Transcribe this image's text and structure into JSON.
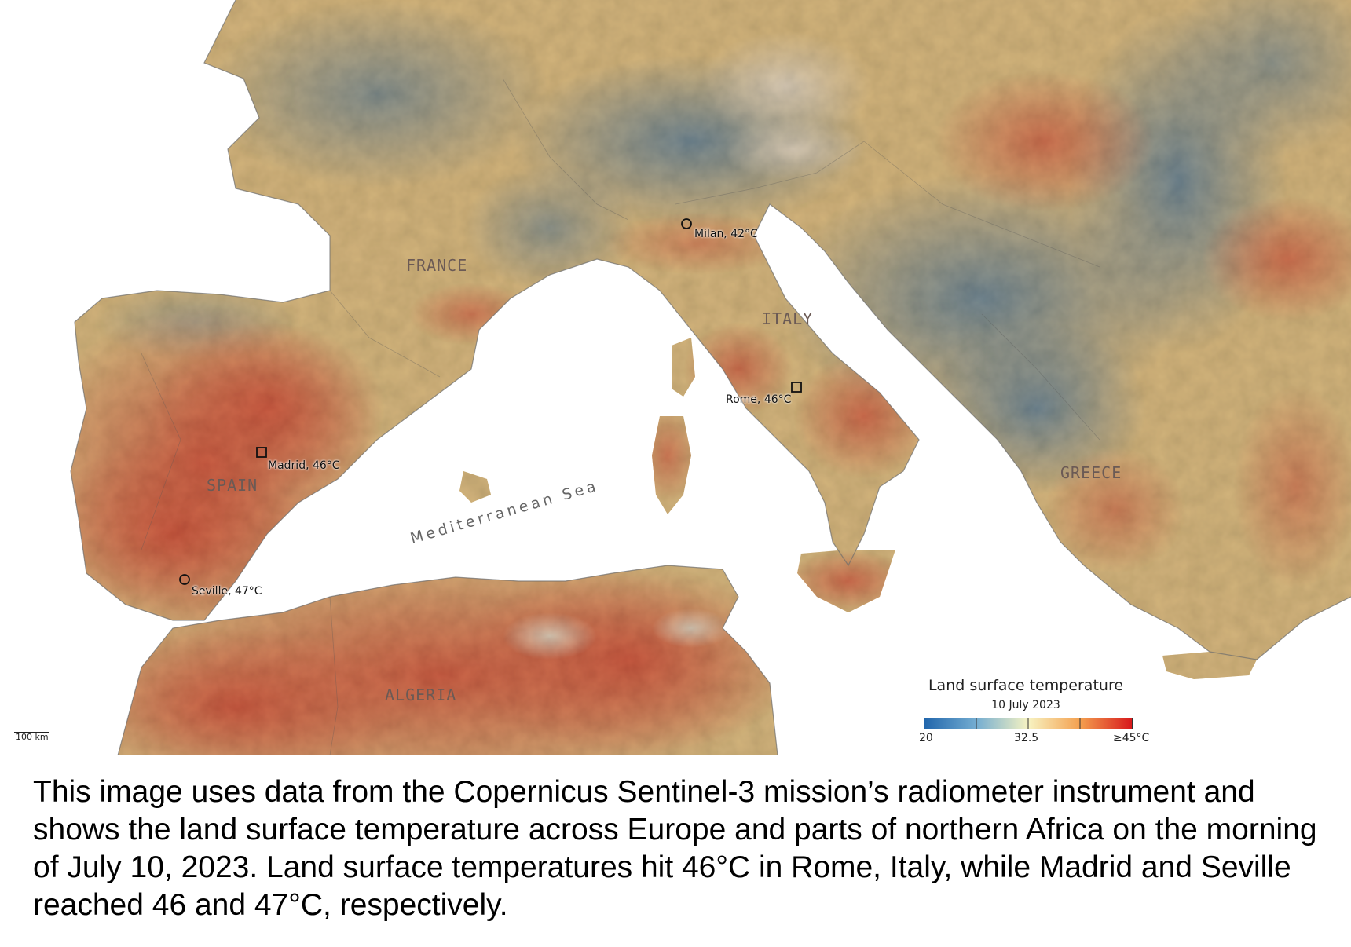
{
  "map": {
    "country_labels": {
      "france": "FRANCE",
      "italy": "ITALY",
      "spain": "SPAIN",
      "greece": "GREECE",
      "algeria": "ALGERIA"
    },
    "sea_label": "Mediterranean Sea",
    "cities": {
      "milan": "Milan, 42°C",
      "rome": "Rome, 46°C",
      "madrid": "Madrid, 46°C",
      "seville": "Seville, 47°C"
    },
    "scale_bar_label": "100 km",
    "colors": {
      "cool": "#2b6fb1",
      "mild": "#f1e7a8",
      "warm": "#f08c4a",
      "hot": "#d7221d"
    }
  },
  "legend": {
    "title": "Land surface temperature",
    "date": "10 July 2023",
    "tick_min": "20",
    "tick_mid": "32.5",
    "tick_max": "≥45°C"
  },
  "caption": "This image uses data from the Copernicus Sentinel-3 mission’s radiometer instrument and shows the land surface temperature across Europe and parts of northern Africa on the morning of July 10, 2023. Land surface temperatures hit 46°C in Rome, Italy, while Madrid and Seville reached 46 and 47°C, respectively."
}
